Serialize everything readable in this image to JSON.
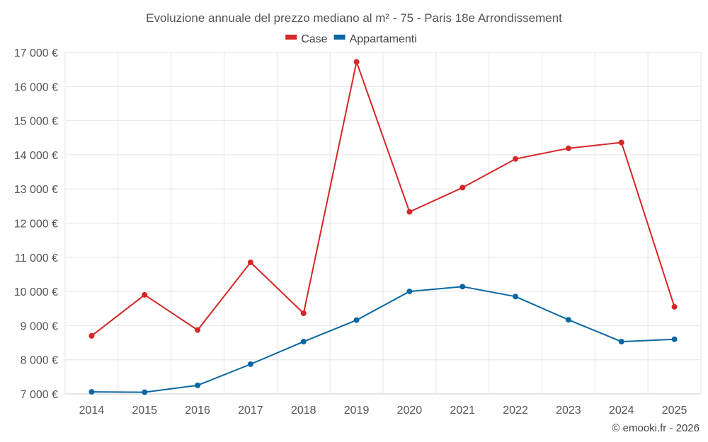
{
  "chart_data": {
    "type": "line",
    "title": "Evoluzione annuale del prezzo mediano al m² - 75 - Paris 18e Arrondissement",
    "x": [
      "2014",
      "2015",
      "2016",
      "2017",
      "2018",
      "2019",
      "2020",
      "2021",
      "2022",
      "2023",
      "2024",
      "2025"
    ],
    "series": [
      {
        "name": "Case",
        "color": "#d62728",
        "values": [
          8700,
          9900,
          8870,
          10850,
          9360,
          16720,
          12330,
          13040,
          13880,
          14190,
          14360,
          9550
        ]
      },
      {
        "name": "Appartamenti",
        "color": "#0a67a3",
        "values": [
          7060,
          7050,
          7250,
          7870,
          8530,
          9160,
          10000,
          10140,
          9850,
          9170,
          8530,
          8600
        ]
      }
    ],
    "ylim": [
      7000,
      17000
    ],
    "yticks": [
      7000,
      8000,
      9000,
      10000,
      11000,
      12000,
      13000,
      14000,
      15000,
      16000,
      17000
    ],
    "ytick_labels": [
      "7 000 €",
      "8 000 €",
      "9 000 €",
      "10 000 €",
      "11 000 €",
      "12 000 €",
      "13 000 €",
      "14 000 €",
      "15 000 €",
      "16 000 €",
      "17 000 €"
    ],
    "xlabel": "",
    "ylabel": "",
    "grid": true,
    "legend": "top-center"
  },
  "credit": "© emooki.fr - 2026"
}
